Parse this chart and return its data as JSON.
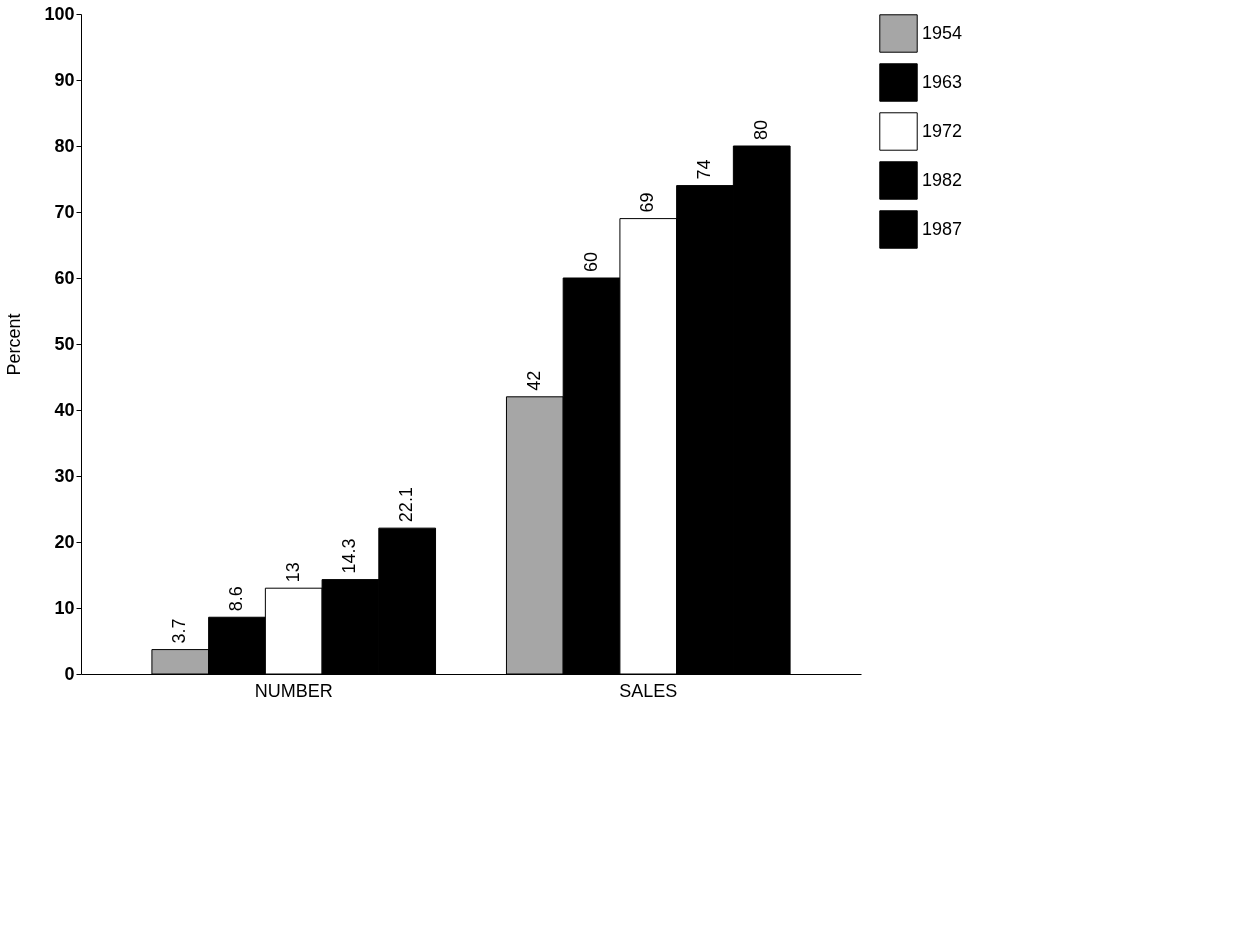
{
  "chart_data": {
    "type": "bar",
    "ylabel": "Percent",
    "categories": [
      "NUMBER",
      "SALES"
    ],
    "series": [
      {
        "name": "1954",
        "color": "#a6a6a6",
        "values": [
          3.7,
          42
        ]
      },
      {
        "name": "1963",
        "color": "#000000",
        "values": [
          8.6,
          60
        ]
      },
      {
        "name": "1972",
        "color": "#ffffff",
        "values": [
          13,
          69
        ]
      },
      {
        "name": "1982",
        "color": "#000000",
        "values": [
          14.3,
          74
        ]
      },
      {
        "name": "1987",
        "color": "#000000",
        "values": [
          22.1,
          80
        ]
      }
    ],
    "ylim": [
      0,
      100
    ],
    "yticks": [
      0,
      10,
      20,
      30,
      40,
      50,
      60,
      70,
      80,
      90,
      100
    ],
    "grid": false,
    "legend": "right",
    "data_labels": true
  }
}
